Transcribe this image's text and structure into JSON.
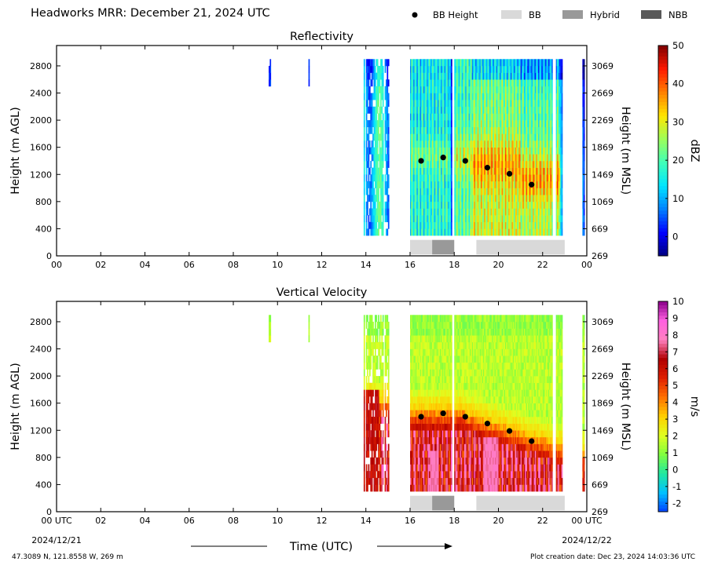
{
  "header": {
    "title": "Headworks MRR:  December 21, 2024 UTC",
    "legend": [
      {
        "label": "BB Height",
        "kind": "dot",
        "color": "#000000"
      },
      {
        "label": "BB",
        "kind": "swatch",
        "color": "#d9d9d9"
      },
      {
        "label": "Hybrid",
        "kind": "swatch",
        "color": "#999999"
      },
      {
        "label": "NBB",
        "kind": "swatch",
        "color": "#595959"
      }
    ]
  },
  "footer": {
    "location": "47.3089 N, 121.8558 W, 269 m",
    "created": "Plot creation date: Dec 23, 2024 14:03:36 UTC"
  },
  "x_axis": {
    "ticks": [
      "00",
      "02",
      "04",
      "06",
      "08",
      "10",
      "12",
      "14",
      "16",
      "18",
      "20",
      "22",
      "00"
    ],
    "bottom_ticks": [
      "00 UTC",
      "02",
      "04",
      "06",
      "08",
      "10",
      "12",
      "14",
      "16",
      "18",
      "20",
      "22",
      "00 UTC"
    ],
    "start_date": "2024/12/21",
    "end_date": "2024/12/22",
    "label": "Time (UTC)"
  },
  "chart_data": [
    {
      "type": "heatmap",
      "title": "Reflectivity",
      "ylabel": "Height (m AGL)",
      "y2label": "Height (m MSL)",
      "xlim": [
        0,
        24
      ],
      "ylim": [
        0,
        3100
      ],
      "yticks": [
        0,
        400,
        800,
        1200,
        1600,
        2000,
        2400,
        2800
      ],
      "y2ticks": [
        269,
        669,
        1069,
        1469,
        1869,
        2269,
        2669,
        3069
      ],
      "colorbar": {
        "label": "dBZ",
        "min": -5,
        "max": 50,
        "ticks": [
          0,
          10,
          20,
          30,
          40,
          50
        ],
        "colors": [
          "#00007f",
          "#0000ff",
          "#0080ff",
          "#00e5ff",
          "#40ffb8",
          "#9cff5a",
          "#ffe600",
          "#ff8000",
          "#ff1a00",
          "#7f0000"
        ]
      },
      "bb_height": {
        "x": [
          16.5,
          17.5,
          18.5,
          19.5,
          20.5,
          21.5
        ],
        "y": [
          1400,
          1450,
          1400,
          1300,
          1210,
          1050
        ]
      },
      "bb_class": [
        {
          "start": 16.0,
          "end": 17.0,
          "type": "BB"
        },
        {
          "start": 17.0,
          "end": 18.0,
          "type": "Hybrid"
        },
        {
          "start": 19.0,
          "end": 23.0,
          "type": "BB"
        }
      ]
    },
    {
      "type": "heatmap",
      "title": "Vertical Velocity",
      "ylabel": "Height (m AGL)",
      "y2label": "Height (m MSL)",
      "xlim": [
        0,
        24
      ],
      "ylim": [
        0,
        3100
      ],
      "yticks": [
        0,
        400,
        800,
        1200,
        1600,
        2000,
        2400,
        2800
      ],
      "y2ticks": [
        269,
        669,
        1069,
        1469,
        1869,
        2269,
        2669,
        3069
      ],
      "colorbar": {
        "label": "m/s",
        "min": -2.5,
        "max": 10,
        "ticks": [
          -2,
          -1,
          0,
          1,
          2,
          3,
          4,
          5,
          6,
          7,
          8,
          9,
          10
        ],
        "colors": [
          "#0040ff",
          "#00c0ff",
          "#20e8a0",
          "#80ff40",
          "#e0ff20",
          "#ffd000",
          "#ff7000",
          "#e02000",
          "#b00000",
          "#ff80c0",
          "#ff60e0",
          "#8b008b"
        ]
      },
      "bb_height": {
        "x": [
          16.5,
          17.5,
          18.5,
          19.5,
          20.5,
          21.5
        ],
        "y": [
          1400,
          1450,
          1400,
          1300,
          1190,
          1040
        ]
      },
      "bb_class": [
        {
          "start": 16.0,
          "end": 17.0,
          "type": "BB"
        },
        {
          "start": 17.0,
          "end": 18.0,
          "type": "Hybrid"
        },
        {
          "start": 19.0,
          "end": 23.0,
          "type": "BB"
        }
      ]
    }
  ]
}
